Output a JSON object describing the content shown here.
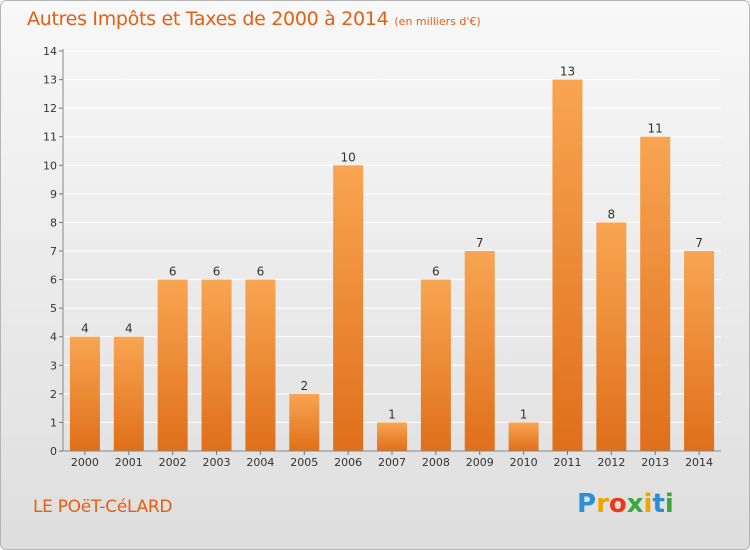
{
  "header": {
    "title": "Autres Impôts et Taxes de 2000 à 2014",
    "subtitle": "(en milliers d'€)"
  },
  "footer": {
    "commune": "LE POëT-CéLARD",
    "brand": "Proxiti",
    "brand_letters": [
      {
        "char": "P",
        "color": "#2a8fd6"
      },
      {
        "char": "r",
        "color": "#f0a400"
      },
      {
        "char": "o",
        "color": "#e83a1a"
      },
      {
        "char": "x",
        "color": "#3aa83a"
      },
      {
        "char": "i",
        "color": "#f0a400"
      },
      {
        "char": "t",
        "color": "#2a8fd6"
      },
      {
        "char": "i",
        "color": "#3aa83a"
      }
    ]
  },
  "colors": {
    "accent": "#e45f12",
    "bar_top": "#f8a552",
    "bar_bottom": "#e06f1a",
    "grid": "#ffffff",
    "axis_text": "#333333"
  },
  "chart_data": {
    "type": "bar",
    "title": "Autres Impôts et Taxes de 2000 à 2014",
    "subtitle": "(en milliers d'€)",
    "categories": [
      "2000",
      "2001",
      "2002",
      "2003",
      "2004",
      "2005",
      "2006",
      "2007",
      "2008",
      "2009",
      "2010",
      "2011",
      "2012",
      "2013",
      "2014"
    ],
    "values": [
      4,
      4,
      6,
      6,
      6,
      2,
      10,
      1,
      6,
      7,
      1,
      13,
      8,
      11,
      7
    ],
    "y_ticks": [
      0,
      1,
      2,
      3,
      4,
      5,
      6,
      7,
      8,
      9,
      10,
      11,
      12,
      13,
      14
    ],
    "ylim": [
      0,
      14
    ],
    "grid": true,
    "xlabel": "",
    "ylabel": ""
  }
}
